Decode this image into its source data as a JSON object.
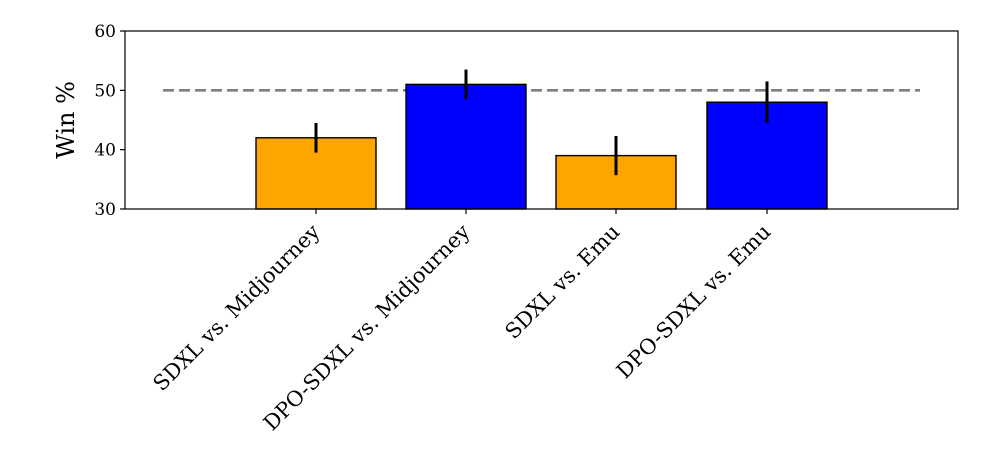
{
  "chart_data": {
    "type": "bar",
    "title": "",
    "xlabel": "",
    "ylabel": "Win %",
    "ylim": [
      30,
      60
    ],
    "yticks": [
      30,
      40,
      50,
      60
    ],
    "reference_line": {
      "value": 50,
      "style": "dashed",
      "color": "#7f7f7f"
    },
    "grid": false,
    "categories": [
      "SDXL vs. Midjourney",
      "DPO-SDXL vs. Midjourney",
      "SDXL vs. Emu",
      "DPO-SDXL vs. Emu"
    ],
    "values": [
      42,
      51,
      39,
      48
    ],
    "errors": [
      2.5,
      2.5,
      3.3,
      3.5
    ],
    "bar_colors": [
      "#ffa500",
      "#0000ff",
      "#ffa500",
      "#0000ff"
    ],
    "error_bar_color": "#000000",
    "bar_edge_color": "#000000"
  }
}
